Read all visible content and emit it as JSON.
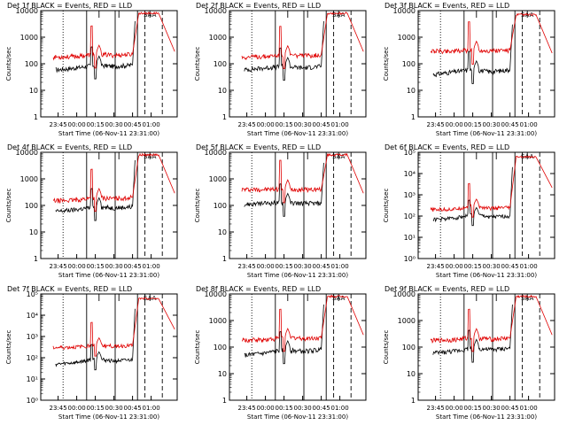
{
  "figure": {
    "ylabel": "Counts/sec",
    "xlabel": "Start Time (06-Nov-11 23:31:00)",
    "time_ticks": [
      "23:45",
      "00:00",
      "00:15",
      "00:30",
      "00:45",
      "01:00"
    ],
    "colors": {
      "events": "#000000",
      "lld": "#e00000"
    },
    "marker_text": "SAA"
  },
  "chart_data": [
    {
      "type": "line",
      "title": "Det 1f BLACK = Events, RED = LLD",
      "ylabel": "Counts/sec",
      "xlabel": "Start Time (06-Nov-11 23:31:00)",
      "scale": "log",
      "ylim": [
        1,
        10000
      ],
      "y_ticks": [
        "1",
        "10",
        "100",
        "1000",
        "10000"
      ],
      "x": [
        "23:45",
        "00:00",
        "00:15",
        "00:30",
        "00:45",
        "01:00"
      ],
      "series": [
        {
          "name": "Events",
          "values": [
            60,
            70,
            90,
            80,
            90,
            4000
          ]
        },
        {
          "name": "LLD",
          "values": [
            180,
            190,
            230,
            210,
            230,
            8000
          ]
        }
      ]
    },
    {
      "type": "line",
      "title": "Det 2f BLACK = Events, RED = LLD",
      "ylabel": "Counts/sec",
      "xlabel": "Start Time (06-Nov-11 23:31:00)",
      "scale": "log",
      "ylim": [
        1,
        10000
      ],
      "y_ticks": [
        "1",
        "10",
        "100",
        "1000",
        "10000"
      ],
      "x": [
        "23:45",
        "00:00",
        "00:15",
        "00:30",
        "00:45",
        "01:00"
      ],
      "series": [
        {
          "name": "Events",
          "values": [
            60,
            70,
            80,
            70,
            80,
            4000
          ]
        },
        {
          "name": "LLD",
          "values": [
            180,
            190,
            220,
            200,
            220,
            8000
          ]
        }
      ]
    },
    {
      "type": "line",
      "title": "Det 3f BLACK = Events, RED = LLD",
      "ylabel": "Counts/sec",
      "xlabel": "Start Time (06-Nov-11 23:31:00)",
      "scale": "log",
      "ylim": [
        1,
        10000
      ],
      "y_ticks": [
        "1",
        "10",
        "100",
        "1000",
        "10000"
      ],
      "x": [
        "23:45",
        "00:00",
        "00:15",
        "00:30",
        "00:45",
        "01:00"
      ],
      "series": [
        {
          "name": "Events",
          "values": [
            40,
            50,
            60,
            50,
            60,
            3000
          ]
        },
        {
          "name": "LLD",
          "values": [
            300,
            300,
            320,
            310,
            320,
            7000
          ]
        }
      ]
    },
    {
      "type": "line",
      "title": "Det 4f BLACK = Events, RED = LLD",
      "ylabel": "Counts/sec",
      "xlabel": "Start Time (06-Nov-11 23:31:00)",
      "scale": "log",
      "ylim": [
        1,
        10000
      ],
      "y_ticks": [
        "1",
        "10",
        "100",
        "1000",
        "10000"
      ],
      "x": [
        "23:45",
        "00:00",
        "00:15",
        "00:30",
        "00:45",
        "01:00"
      ],
      "series": [
        {
          "name": "Events",
          "values": [
            60,
            70,
            90,
            80,
            90,
            5000
          ]
        },
        {
          "name": "LLD",
          "values": [
            150,
            160,
            200,
            180,
            200,
            8000
          ]
        }
      ]
    },
    {
      "type": "line",
      "title": "Det 5f BLACK = Events, RED = LLD",
      "ylabel": "Counts/sec",
      "xlabel": "Start Time (06-Nov-11 23:31:00)",
      "scale": "log",
      "ylim": [
        1,
        10000
      ],
      "y_ticks": [
        "1",
        "10",
        "100",
        "1000",
        "10000"
      ],
      "x": [
        "23:45",
        "00:00",
        "00:15",
        "00:30",
        "00:45",
        "01:00"
      ],
      "series": [
        {
          "name": "Events",
          "values": [
            110,
            120,
            130,
            120,
            120,
            4000
          ]
        },
        {
          "name": "LLD",
          "values": [
            400,
            400,
            420,
            400,
            400,
            8000
          ]
        }
      ]
    },
    {
      "type": "line",
      "title": "Det 6f BLACK = Events, RED = LLD",
      "ylabel": "Counts/sec",
      "xlabel": "Start Time (06-Nov-11 23:31:00)",
      "scale": "log",
      "ylim": [
        1,
        100000
      ],
      "y_ticks": [
        "10⁰",
        "10¹",
        "10²",
        "10³",
        "10⁴",
        "10⁵"
      ],
      "x": [
        "23:45",
        "00:00",
        "00:15",
        "00:30",
        "00:45",
        "01:00"
      ],
      "series": [
        {
          "name": "Events",
          "values": [
            70,
            80,
            120,
            90,
            100,
            20000
          ]
        },
        {
          "name": "LLD",
          "values": [
            200,
            210,
            300,
            230,
            250,
            60000
          ]
        }
      ]
    },
    {
      "type": "line",
      "title": "Det 7f BLACK = Events, RED = LLD",
      "ylabel": "Counts/sec",
      "xlabel": "Start Time (06-Nov-11 23:31:00)",
      "scale": "log",
      "ylim": [
        1,
        100000
      ],
      "y_ticks": [
        "10⁰",
        "10¹",
        "10²",
        "10³",
        "10⁴",
        "10⁵"
      ],
      "x": [
        "23:45",
        "00:00",
        "00:15",
        "00:30",
        "00:45",
        "01:00"
      ],
      "series": [
        {
          "name": "Events",
          "values": [
            50,
            60,
            90,
            70,
            80,
            20000
          ]
        },
        {
          "name": "LLD",
          "values": [
            300,
            320,
            400,
            350,
            380,
            60000
          ]
        }
      ]
    },
    {
      "type": "line",
      "title": "Det 8f BLACK = Events, RED = LLD",
      "ylabel": "Counts/sec",
      "xlabel": "Start Time (06-Nov-11 23:31:00)",
      "scale": "log",
      "ylim": [
        1,
        10000
      ],
      "y_ticks": [
        "1",
        "10",
        "100",
        "1000",
        "10000"
      ],
      "x": [
        "23:45",
        "00:00",
        "00:15",
        "00:30",
        "00:45",
        "01:00"
      ],
      "series": [
        {
          "name": "Events",
          "values": [
            50,
            60,
            80,
            70,
            80,
            4000
          ]
        },
        {
          "name": "LLD",
          "values": [
            180,
            190,
            230,
            210,
            220,
            8000
          ]
        }
      ]
    },
    {
      "type": "line",
      "title": "Det 9f BLACK = Events, RED = LLD",
      "ylabel": "Counts/sec",
      "xlabel": "Start Time (06-Nov-11 23:31:00)",
      "scale": "log",
      "ylim": [
        1,
        10000
      ],
      "y_ticks": [
        "1",
        "10",
        "100",
        "1000",
        "10000"
      ],
      "x": [
        "23:45",
        "00:00",
        "00:15",
        "00:30",
        "00:45",
        "01:00"
      ],
      "series": [
        {
          "name": "Events",
          "values": [
            60,
            70,
            90,
            80,
            90,
            4000
          ]
        },
        {
          "name": "LLD",
          "values": [
            180,
            190,
            230,
            200,
            220,
            8000
          ]
        }
      ]
    }
  ]
}
